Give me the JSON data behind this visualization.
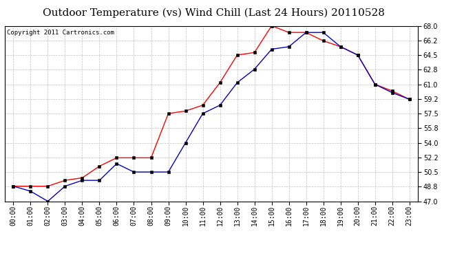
{
  "title": "Outdoor Temperature (vs) Wind Chill (Last 24 Hours) 20110528",
  "copyright_text": "Copyright 2011 Cartronics.com",
  "x_labels": [
    "00:00",
    "01:00",
    "02:00",
    "03:00",
    "04:00",
    "05:00",
    "06:00",
    "07:00",
    "08:00",
    "09:00",
    "10:00",
    "11:00",
    "12:00",
    "13:00",
    "14:00",
    "15:00",
    "16:00",
    "17:00",
    "18:00",
    "19:00",
    "20:00",
    "21:00",
    "22:00",
    "23:00"
  ],
  "temp_red": [
    48.8,
    48.8,
    48.8,
    49.5,
    49.8,
    51.2,
    52.2,
    52.2,
    52.2,
    57.5,
    57.8,
    58.5,
    61.2,
    64.5,
    64.8,
    68.0,
    67.2,
    67.2,
    66.2,
    65.5,
    64.5,
    61.0,
    60.2,
    59.2
  ],
  "wind_chill_blue": [
    48.8,
    48.2,
    47.0,
    48.8,
    49.5,
    49.5,
    51.5,
    50.5,
    50.5,
    50.5,
    54.0,
    57.5,
    58.5,
    61.2,
    62.8,
    65.2,
    65.5,
    67.2,
    67.2,
    65.5,
    64.5,
    61.0,
    60.0,
    59.2
  ],
  "ylim_min": 47.0,
  "ylim_max": 68.0,
  "yticks": [
    47.0,
    48.8,
    50.5,
    52.2,
    54.0,
    55.8,
    57.5,
    59.2,
    61.0,
    62.8,
    64.5,
    66.2,
    68.0
  ],
  "red_color": "#ff0000",
  "blue_color": "#0000cc",
  "bg_color": "#ffffff",
  "plot_bg_color": "#ffffff",
  "grid_color": "#c0c0c0",
  "title_fontsize": 11,
  "copyright_fontsize": 6.5,
  "tick_fontsize": 7
}
